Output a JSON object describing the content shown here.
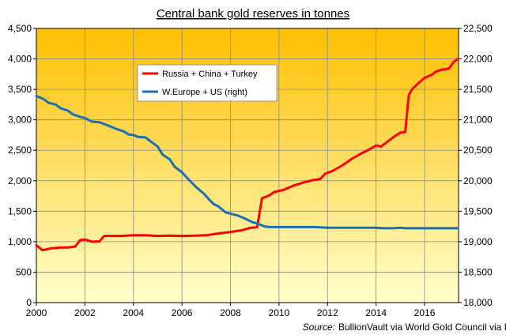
{
  "chart_data": {
    "type": "line",
    "title": "Central bank gold reserves in tonnes",
    "xlabel": "",
    "ylabel": "",
    "xlim": [
      2000,
      2017.4
    ],
    "ylim_left": [
      0,
      4500
    ],
    "ylim_right": [
      18000,
      22500
    ],
    "x_ticks": [
      "2000",
      "2002",
      "2004",
      "2006",
      "2008",
      "2010",
      "2012",
      "2014",
      "2016"
    ],
    "y_ticks_left": [
      "0",
      "500",
      "1,000",
      "1,500",
      "2,000",
      "2,500",
      "3,000",
      "3,500",
      "4,000",
      "4,500"
    ],
    "y_ticks_right": [
      "18,000",
      "18,500",
      "19,000",
      "19,500",
      "20,000",
      "20,500",
      "21,000",
      "21,500",
      "22,000",
      "22,500"
    ],
    "grid": true,
    "legend_position": "upper-left-center",
    "source_label": "Source:",
    "source_text": "BullionVault via World Gold Council via IMF",
    "colors": {
      "bg_top": "#ffbf00",
      "bg_bottom": "#ffffcc",
      "grid": "#888888"
    },
    "series": [
      {
        "name": "Russia + China + Turkey",
        "axis": "left",
        "color": "#ff0000",
        "points": [
          [
            2000.0,
            940
          ],
          [
            2000.25,
            860
          ],
          [
            2000.6,
            890
          ],
          [
            2001.0,
            905
          ],
          [
            2001.3,
            905
          ],
          [
            2001.6,
            920
          ],
          [
            2001.8,
            1025
          ],
          [
            2002.0,
            1035
          ],
          [
            2002.3,
            1000
          ],
          [
            2002.6,
            1005
          ],
          [
            2002.8,
            1095
          ],
          [
            2003.0,
            1095
          ],
          [
            2003.5,
            1095
          ],
          [
            2004.0,
            1105
          ],
          [
            2004.5,
            1105
          ],
          [
            2005.0,
            1095
          ],
          [
            2005.5,
            1100
          ],
          [
            2006.0,
            1095
          ],
          [
            2006.5,
            1100
          ],
          [
            2007.0,
            1105
          ],
          [
            2007.5,
            1135
          ],
          [
            2008.0,
            1160
          ],
          [
            2008.5,
            1190
          ],
          [
            2008.8,
            1225
          ],
          [
            2009.1,
            1240
          ],
          [
            2009.3,
            1710
          ],
          [
            2009.6,
            1760
          ],
          [
            2009.8,
            1815
          ],
          [
            2010.2,
            1850
          ],
          [
            2010.6,
            1920
          ],
          [
            2011.0,
            1970
          ],
          [
            2011.4,
            2010
          ],
          [
            2011.7,
            2030
          ],
          [
            2011.9,
            2115
          ],
          [
            2012.2,
            2160
          ],
          [
            2012.6,
            2250
          ],
          [
            2013.0,
            2360
          ],
          [
            2013.4,
            2450
          ],
          [
            2013.7,
            2510
          ],
          [
            2014.0,
            2580
          ],
          [
            2014.2,
            2560
          ],
          [
            2014.5,
            2650
          ],
          [
            2014.8,
            2740
          ],
          [
            2015.0,
            2790
          ],
          [
            2015.2,
            2800
          ],
          [
            2015.35,
            3410
          ],
          [
            2015.5,
            3510
          ],
          [
            2015.8,
            3620
          ],
          [
            2016.0,
            3690
          ],
          [
            2016.3,
            3740
          ],
          [
            2016.5,
            3800
          ],
          [
            2016.8,
            3830
          ],
          [
            2017.0,
            3840
          ],
          [
            2017.2,
            3950
          ],
          [
            2017.38,
            4000
          ]
        ]
      },
      {
        "name": "W.Europe + US (right)",
        "axis": "right",
        "color": "#1b6fb5",
        "points": [
          [
            2000.0,
            21390
          ],
          [
            2000.3,
            21340
          ],
          [
            2000.5,
            21280
          ],
          [
            2000.8,
            21250
          ],
          [
            2001.0,
            21190
          ],
          [
            2001.3,
            21150
          ],
          [
            2001.5,
            21090
          ],
          [
            2001.8,
            21050
          ],
          [
            2002.0,
            21030
          ],
          [
            2002.3,
            20970
          ],
          [
            2002.6,
            20960
          ],
          [
            2003.0,
            20900
          ],
          [
            2003.3,
            20850
          ],
          [
            2003.6,
            20810
          ],
          [
            2003.8,
            20760
          ],
          [
            2004.0,
            20750
          ],
          [
            2004.2,
            20720
          ],
          [
            2004.5,
            20710
          ],
          [
            2004.8,
            20620
          ],
          [
            2005.0,
            20560
          ],
          [
            2005.2,
            20430
          ],
          [
            2005.5,
            20350
          ],
          [
            2005.7,
            20230
          ],
          [
            2006.0,
            20140
          ],
          [
            2006.3,
            20010
          ],
          [
            2006.6,
            19890
          ],
          [
            2006.9,
            19790
          ],
          [
            2007.1,
            19700
          ],
          [
            2007.3,
            19620
          ],
          [
            2007.5,
            19580
          ],
          [
            2007.8,
            19480
          ],
          [
            2008.0,
            19460
          ],
          [
            2008.3,
            19430
          ],
          [
            2008.6,
            19380
          ],
          [
            2008.9,
            19320
          ],
          [
            2009.1,
            19300
          ],
          [
            2009.4,
            19250
          ],
          [
            2009.6,
            19240
          ],
          [
            2010.0,
            19240
          ],
          [
            2011.0,
            19240
          ],
          [
            2011.5,
            19240
          ],
          [
            2012.0,
            19230
          ],
          [
            2013.0,
            19230
          ],
          [
            2014.0,
            19230
          ],
          [
            2014.3,
            19220
          ],
          [
            2014.7,
            19220
          ],
          [
            2015.0,
            19230
          ],
          [
            2015.2,
            19220
          ],
          [
            2015.6,
            19220
          ],
          [
            2016.0,
            19220
          ],
          [
            2016.5,
            19220
          ],
          [
            2017.0,
            19220
          ],
          [
            2017.38,
            19220
          ]
        ]
      }
    ]
  }
}
